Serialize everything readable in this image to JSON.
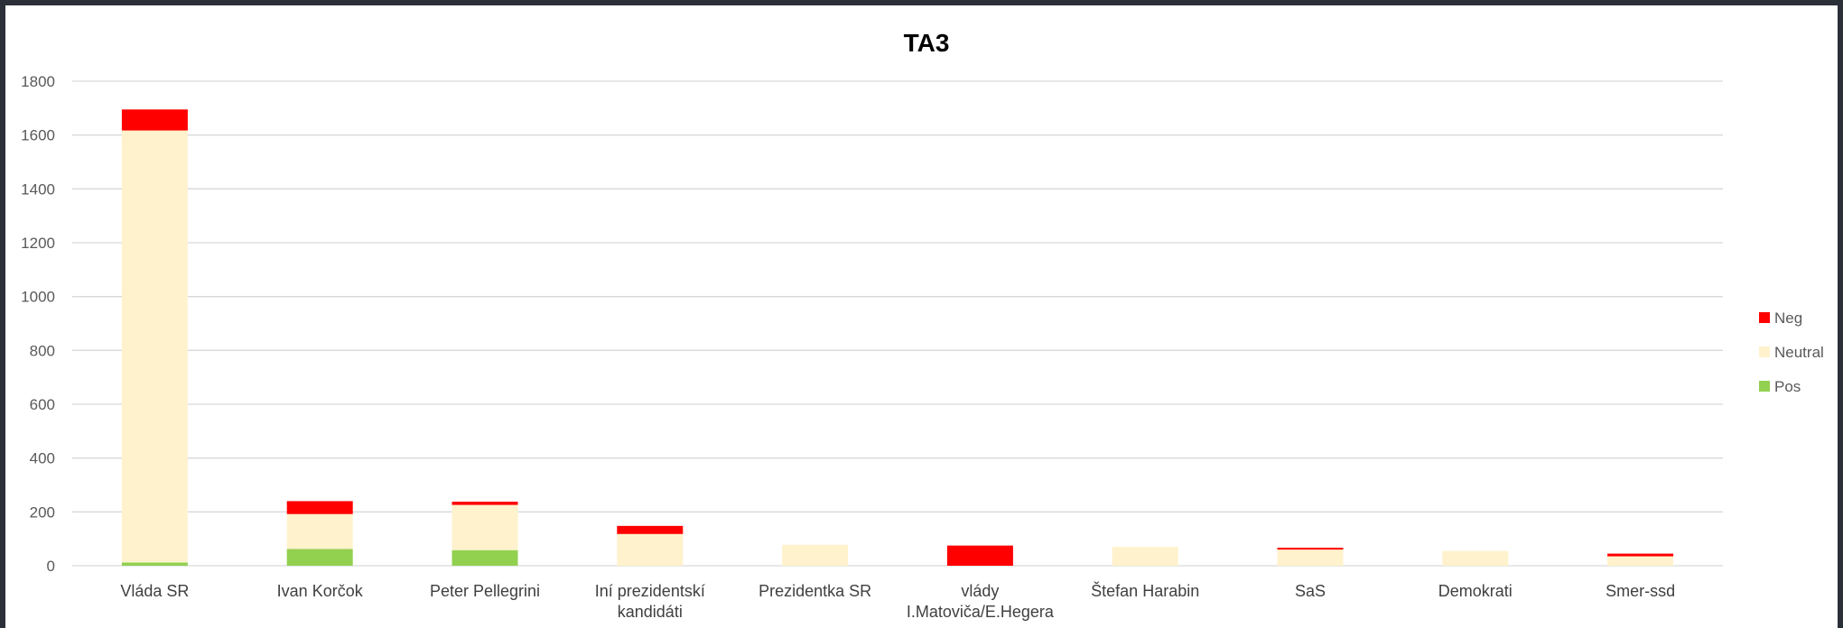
{
  "chart_data": {
    "type": "bar",
    "stacked": true,
    "title": "TA3",
    "xlabel": "",
    "ylabel": "",
    "ylim": [
      0,
      1800
    ],
    "yticks": [
      0,
      200,
      400,
      600,
      800,
      1000,
      1200,
      1400,
      1600,
      1800
    ],
    "grid": true,
    "legend_position": "right",
    "categories": [
      [
        "Vláda SR"
      ],
      [
        "Ivan Korčok"
      ],
      [
        "Peter Pellegrini"
      ],
      [
        "Iní prezidentskí",
        "kandidáti"
      ],
      [
        "Prezidentka SR"
      ],
      [
        "vlády",
        "I.Matoviča/E.Hegera"
      ],
      [
        "Štefan Harabin"
      ],
      [
        "SaS"
      ],
      [
        "Demokrati"
      ],
      [
        "Smer-ssd"
      ]
    ],
    "series": [
      {
        "name": "Pos",
        "color": "#92d050",
        "values": [
          12,
          62,
          58,
          0,
          0,
          0,
          0,
          0,
          0,
          0
        ]
      },
      {
        "name": "Neutral",
        "color": "#fff2cc",
        "values": [
          1605,
          130,
          168,
          118,
          78,
          0,
          70,
          60,
          55,
          35
        ]
      },
      {
        "name": "Neg",
        "color": "#ff0000",
        "values": [
          78,
          48,
          12,
          30,
          0,
          75,
          0,
          7,
          0,
          10
        ]
      }
    ],
    "legend_order": [
      "Neg",
      "Neutral",
      "Pos"
    ]
  }
}
